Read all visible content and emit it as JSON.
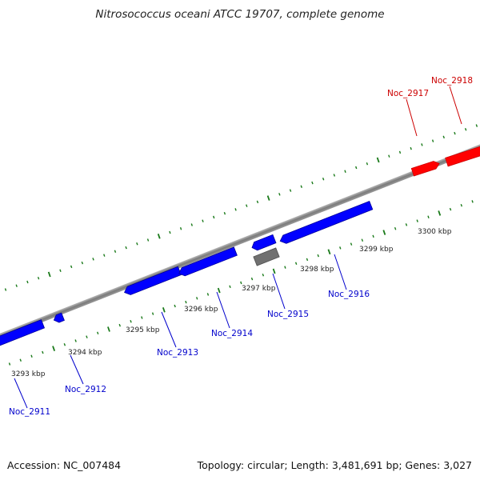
{
  "title": "Nitrosococcus oceani ATCC 19707, complete genome",
  "footer": {
    "accession": "Accession: NC_007484",
    "summary": "Topology: circular; Length: 3,481,691 bp; Genes: 3,027"
  },
  "colors": {
    "forward_gene": "#ff0000",
    "reverse_gene": "#0000ff",
    "other_feature": "#808080",
    "ticks": "#1a7a1a",
    "backbone": "#8c8c8c"
  },
  "scale_labels": [
    "3293 kbp",
    "3294 kbp",
    "3295 kbp",
    "3296 kbp",
    "3297 kbp",
    "3298 kbp",
    "3299 kbp",
    "3300 kbp"
  ],
  "gene_labels": [
    "Noc_2911",
    "Noc_2912",
    "Noc_2913",
    "Noc_2914",
    "Noc_2915",
    "Noc_2916",
    "Noc_2917",
    "Noc_2918"
  ]
}
